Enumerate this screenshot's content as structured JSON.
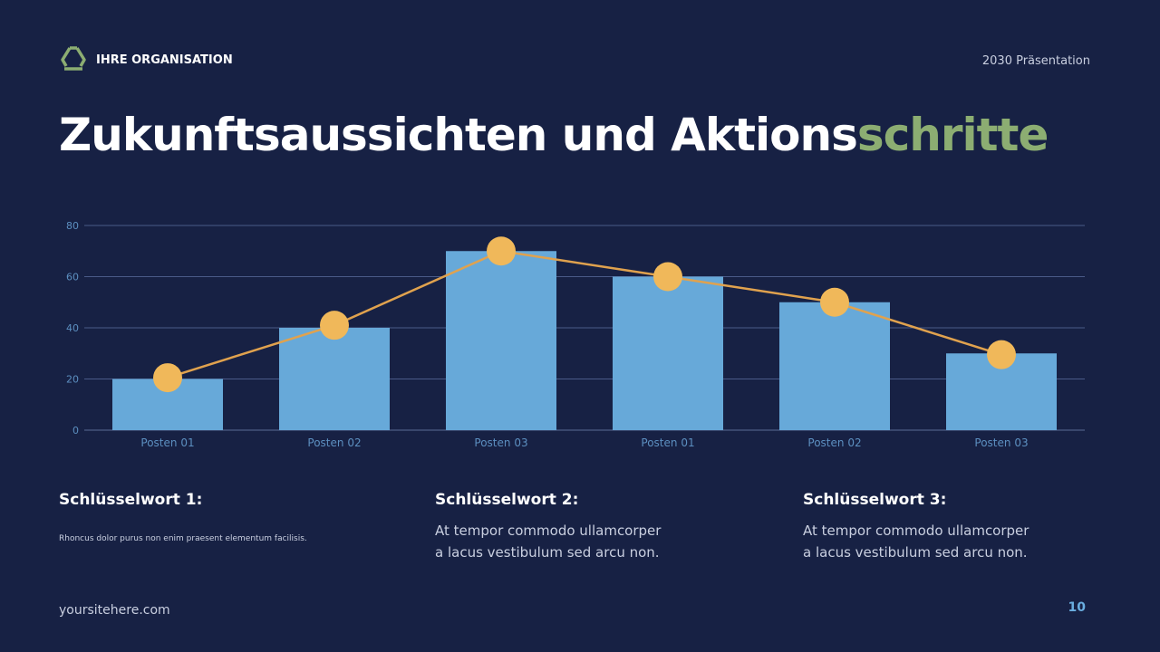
{
  "header": {
    "organization": "IHRE ORGANISATION",
    "presentation": "2030 Präsentation",
    "logo_icon": "recycle-icon"
  },
  "title": {
    "main": "Zukunftsaussichten und Aktions",
    "accent": "schritte",
    "accent_color": "#8cad72"
  },
  "chart_data": {
    "type": "bar",
    "categories": [
      "Posten 01",
      "Posten 02",
      "Posten 03",
      "Posten 01",
      "Posten 02",
      "Posten 03"
    ],
    "series": [
      {
        "type": "bar",
        "values": [
          20,
          40,
          70,
          60,
          50,
          30
        ],
        "color": "#67a9d9"
      },
      {
        "type": "line",
        "values": [
          20.5,
          41,
          70,
          60,
          50,
          29.5
        ],
        "color": "#f0b85a"
      }
    ],
    "ylim": [
      0,
      80
    ],
    "yticks": [
      0,
      20,
      40,
      60,
      80
    ],
    "grid": true
  },
  "keywords": [
    {
      "title": "Schlüsselwort 1:",
      "text": [
        "Rhoncus dolor purus non enim praesent elementum facilisis."
      ]
    },
    {
      "title": "Schlüsselwort 2:",
      "text": [
        "At tempor commodo ullamcorper",
        "a lacus vestibulum sed arcu non."
      ]
    },
    {
      "title": "Schlüsselwort 3:",
      "text": [
        "At tempor commodo ullamcorper",
        "a lacus vestibulum sed arcu non."
      ]
    }
  ],
  "footer": {
    "site": "yoursitehere.com",
    "page": "10"
  }
}
